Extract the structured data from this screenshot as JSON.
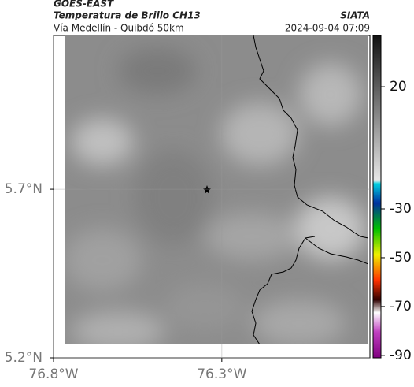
{
  "header": {
    "title": "GOES-EAST",
    "subtitle": "Temperatura de Brillo CH13",
    "source": "SIATA",
    "region": "Vía Medellín - Quibdó 50km",
    "datetime": "2024-09-04 07:09"
  },
  "map": {
    "xlim": [
      -76.8,
      -75.86
    ],
    "ylim": [
      5.2,
      6.156
    ],
    "xticks": [
      {
        "value": -76.8,
        "label": "76.8°W"
      },
      {
        "value": -76.3,
        "label": "76.3°W"
      }
    ],
    "yticks": [
      {
        "value": 5.7,
        "label": "5.7°N"
      },
      {
        "value": 5.2,
        "label": "5.2°N"
      }
    ],
    "grid": true
  },
  "colorbar": {
    "clim": [
      41,
      -91
    ],
    "ticks": [
      20,
      -30,
      -50,
      -70,
      -90
    ]
  }
}
